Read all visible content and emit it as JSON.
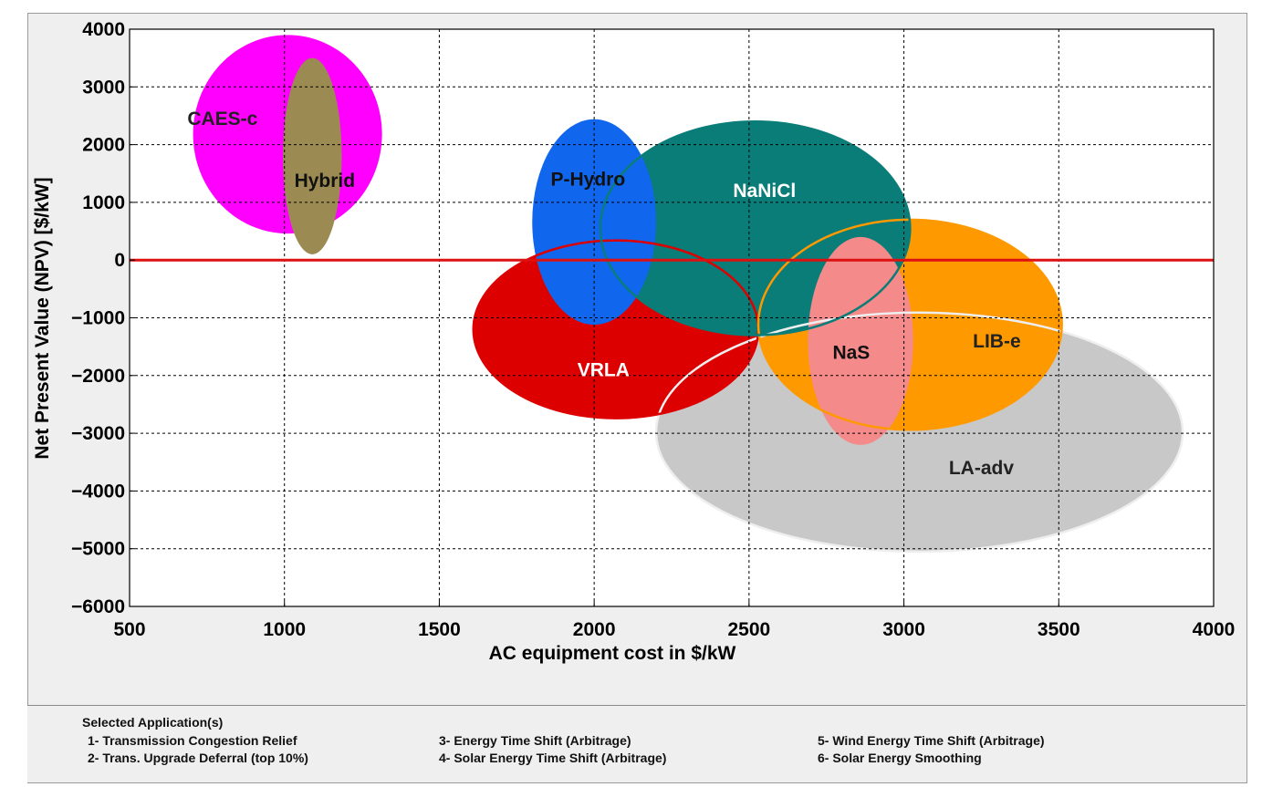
{
  "chart_data": {
    "type": "scatter",
    "xlabel": "AC equipment cost in $/kW",
    "ylabel": "Net Present Value (NPV) [$/kW]",
    "xlim": [
      500,
      4000
    ],
    "ylim": [
      -6000,
      4000
    ],
    "xticks": [
      500,
      1000,
      1500,
      2000,
      2500,
      3000,
      3500,
      4000
    ],
    "yticks": [
      4000,
      3000,
      2000,
      1000,
      0,
      -1000,
      -2000,
      -3000,
      -4000,
      -5000,
      -6000
    ],
    "xtick_labels": [
      "500",
      "1000",
      "1500",
      "2000",
      "2500",
      "3000",
      "3500",
      "4000"
    ],
    "ytick_labels": [
      "4000",
      "3000",
      "2000",
      "1000",
      "0",
      "−1000",
      "−2000",
      "−3000",
      "−4000",
      "−5000",
      "−6000"
    ],
    "grid": true,
    "reference_line": {
      "y": 0,
      "color": "#dd1111"
    },
    "regions": [
      {
        "name": "CAES-c",
        "cx": 1010,
        "cy": 2180,
        "rx": 305,
        "ry": 1720,
        "color": "#ff00ff",
        "label_x": 800,
        "label_y": 2450,
        "label_color": "#222222"
      },
      {
        "name": "Hybrid",
        "cx": 1090,
        "cy": 1800,
        "rx": 95,
        "ry": 1700,
        "color": "#9b8a52",
        "label_x": 1130,
        "label_y": 1380,
        "label_color": "#111111"
      },
      {
        "name": "LA-adv",
        "cx": 3050,
        "cy": -2980,
        "rx": 850,
        "ry": 2070,
        "color": "#c8c8c8",
        "label_x": 3250,
        "label_y": -3600,
        "label_color": "#222222"
      },
      {
        "name": "VRLA",
        "cx": 2070,
        "cy": -1200,
        "rx": 460,
        "ry": 1540,
        "color": "#dd0000",
        "label_x": 2030,
        "label_y": -1900,
        "label_color": "#ffffff"
      },
      {
        "name": "LIB-e",
        "cx": 3020,
        "cy": -1120,
        "rx": 490,
        "ry": 1820,
        "color": "#ff9900",
        "label_x": 3300,
        "label_y": -1400,
        "label_color": "#222222"
      },
      {
        "name": "NaNiCl",
        "cx": 2520,
        "cy": 550,
        "rx": 500,
        "ry": 1850,
        "color": "#0a7d78",
        "label_x": 2550,
        "label_y": 1200,
        "label_color": "#ffffff"
      },
      {
        "name": "P-Hydro",
        "cx": 2000,
        "cy": 660,
        "rx": 200,
        "ry": 1780,
        "color": "#1166ee",
        "label_x": 1980,
        "label_y": 1400,
        "label_color": "#111111"
      },
      {
        "name": "NaS",
        "cx": 2860,
        "cy": -1400,
        "rx": 170,
        "ry": 1800,
        "color": "#f48a8a",
        "label_x": 2830,
        "label_y": -1600,
        "label_color": "#111111"
      }
    ]
  },
  "applications": {
    "title": "Selected Application(s)",
    "items": [
      "1- Transmission Congestion Relief",
      "2- Trans. Upgrade Deferral (top 10%)",
      "3- Energy Time Shift (Arbitrage)",
      "4- Solar Energy Time Shift (Arbitrage)",
      "5- Wind Energy Time Shift (Arbitrage)",
      "6- Solar Energy Smoothing"
    ]
  }
}
